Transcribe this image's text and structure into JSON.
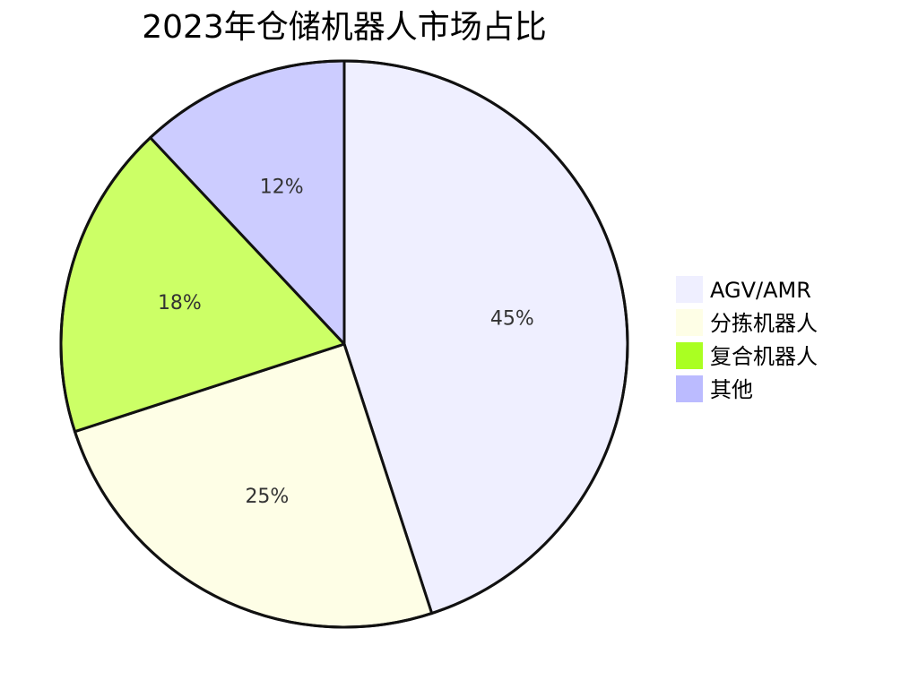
{
  "chart_data": {
    "type": "pie",
    "title": "2023年仓储机器人市场占比",
    "slices": [
      {
        "label": "AGV/AMR",
        "value": 45,
        "display": "45%",
        "color": "#efefff"
      },
      {
        "label": "分拣机器人",
        "value": 25,
        "display": "25%",
        "color": "#fefee6"
      },
      {
        "label": "复合机器人",
        "value": 18,
        "display": "18%",
        "color": "#ccff66"
      },
      {
        "label": "其他",
        "value": 12,
        "display": "12%",
        "color": "#ccccff"
      }
    ],
    "legend": {
      "position": "right",
      "entries": [
        {
          "label": "AGV/AMR",
          "color": "#efefff"
        },
        {
          "label": "分拣机器人",
          "color": "#fefee6"
        },
        {
          "label": "复合机器人",
          "color": "#aaff22"
        },
        {
          "label": "其他",
          "color": "#bbbbff"
        }
      ]
    }
  }
}
